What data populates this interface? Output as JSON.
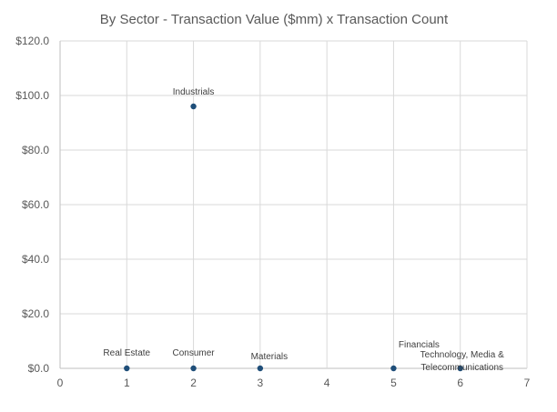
{
  "chart_data": {
    "type": "scatter",
    "title": "By Sector - Transaction Value ($mm) x Transaction Count",
    "xlabel": "",
    "ylabel": "",
    "xlim": [
      0,
      7
    ],
    "ylim": [
      0,
      120
    ],
    "x_ticks": [
      "0",
      "1",
      "2",
      "3",
      "4",
      "5",
      "6",
      "7"
    ],
    "y_ticks": [
      "$0.0",
      "$20.0",
      "$40.0",
      "$60.0",
      "$80.0",
      "$100.0",
      "$120.0"
    ],
    "grid": true,
    "legend": "none",
    "marker_color": "#1f4e79",
    "points": [
      {
        "label": "Real Estate",
        "x": 1,
        "y": 0.0
      },
      {
        "label": "Industrials",
        "x": 2,
        "y": 96.0
      },
      {
        "label": "Consumer",
        "x": 2,
        "y": 0.0
      },
      {
        "label": "Materials",
        "x": 3,
        "y": 0.0
      },
      {
        "label": "Financials",
        "x": 5,
        "y": 0.0
      },
      {
        "label": "Technology, Media & Telecommunications",
        "x": 6,
        "y": 0.0
      }
    ]
  }
}
